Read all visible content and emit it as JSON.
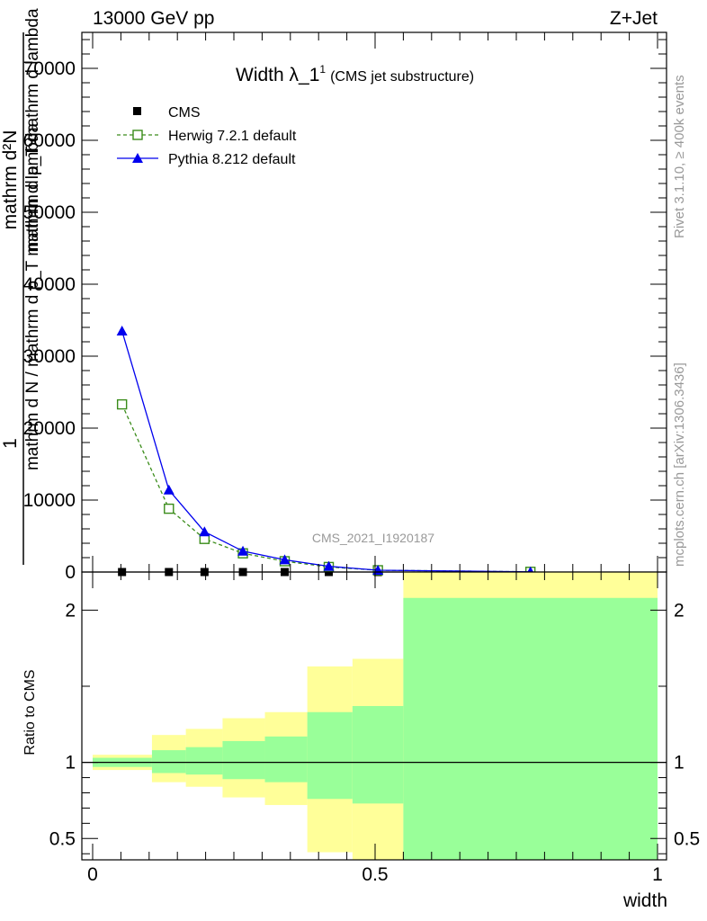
{
  "header": {
    "left": "13000 GeV pp",
    "right": "Z+Jet"
  },
  "side_labels": {
    "rivet": "Rivet 3.1.10, ≥ 400k events",
    "mcplots": "mcplots.cern.ch [arXiv:1306.3436]"
  },
  "chart_data": [
    {
      "type": "line",
      "title": "Width λ_1",
      "title_sup": "1",
      "subtitle": "(CMS jet substructure)",
      "watermark": "CMS_2021_I1920187",
      "ylabel": {
        "numerator": "1",
        "denominator": "mathrm d N / mathrm d p_T mathrm d lambda",
        "top_numerator": "mathrm d²N",
        "top_denominator": "mathrm d p_T mathrm d lambda"
      },
      "xlim": [
        0,
        1
      ],
      "ylim": [
        0,
        75000
      ],
      "y_ticks": [
        0,
        10000,
        20000,
        30000,
        40000,
        50000,
        60000,
        70000
      ],
      "y_tick_labels": [
        "0",
        "10000",
        "20000",
        "30000",
        "40000",
        "50000",
        "60000",
        "70000"
      ],
      "legend_position": "top-left",
      "series": [
        {
          "name": "CMS",
          "color": "#000000",
          "marker": "filled-square",
          "x": [
            0.052,
            0.135,
            0.198,
            0.266,
            0.34,
            0.418,
            0.505,
            0.775
          ],
          "y": [
            0,
            0,
            0,
            0,
            0,
            0,
            0,
            0
          ]
        },
        {
          "name": "Herwig 7.2.1 default",
          "color": "#3a8c1a",
          "marker": "open-square",
          "line": "dashed",
          "x": [
            0.052,
            0.135,
            0.198,
            0.266,
            0.34,
            0.418,
            0.505,
            0.775
          ],
          "y": [
            23300,
            8800,
            4600,
            2600,
            1500,
            700,
            250,
            30
          ]
        },
        {
          "name": "Pythia 8.212 default",
          "color": "#0000ee",
          "marker": "filled-triangle",
          "line": "solid",
          "x": [
            0.052,
            0.135,
            0.198,
            0.266,
            0.34,
            0.418,
            0.505,
            0.775
          ],
          "y": [
            33500,
            11400,
            5600,
            2900,
            1700,
            800,
            250,
            30
          ]
        }
      ]
    },
    {
      "type": "area",
      "ylabel": "Ratio to CMS",
      "xlabel": "width",
      "xlim": [
        0,
        1
      ],
      "ylim": [
        0.36,
        2.25
      ],
      "x_ticks": [
        0,
        0.5,
        1
      ],
      "x_tick_labels": [
        "0",
        "0.5",
        "1"
      ],
      "y_ticks": [
        0.5,
        1,
        2
      ],
      "y_tick_labels": [
        "0.5",
        "1",
        "2"
      ],
      "reference_line": 1,
      "band_colors": {
        "outer": "#ffff99",
        "inner": "#99ff99"
      },
      "bins": [
        {
          "lo": 0.0,
          "hi": 0.105,
          "outer": [
            0.95,
            1.05
          ],
          "inner": [
            0.97,
            1.03
          ]
        },
        {
          "lo": 0.105,
          "hi": 0.165,
          "outer": [
            0.87,
            1.18
          ],
          "inner": [
            0.93,
            1.08
          ]
        },
        {
          "lo": 0.165,
          "hi": 0.23,
          "outer": [
            0.84,
            1.22
          ],
          "inner": [
            0.92,
            1.1
          ]
        },
        {
          "lo": 0.23,
          "hi": 0.305,
          "outer": [
            0.77,
            1.29
          ],
          "inner": [
            0.89,
            1.14
          ]
        },
        {
          "lo": 0.305,
          "hi": 0.38,
          "outer": [
            0.72,
            1.33
          ],
          "inner": [
            0.87,
            1.17
          ]
        },
        {
          "lo": 0.38,
          "hi": 0.46,
          "outer": [
            0.41,
            1.63
          ],
          "inner": [
            0.76,
            1.33
          ]
        },
        {
          "lo": 0.46,
          "hi": 0.55,
          "outer": [
            0.36,
            1.68
          ],
          "inner": [
            0.73,
            1.37
          ]
        },
        {
          "lo": 0.55,
          "hi": 1.0,
          "outer": [
            0.36,
            2.25
          ],
          "inner": [
            0.36,
            2.08
          ]
        }
      ]
    }
  ]
}
